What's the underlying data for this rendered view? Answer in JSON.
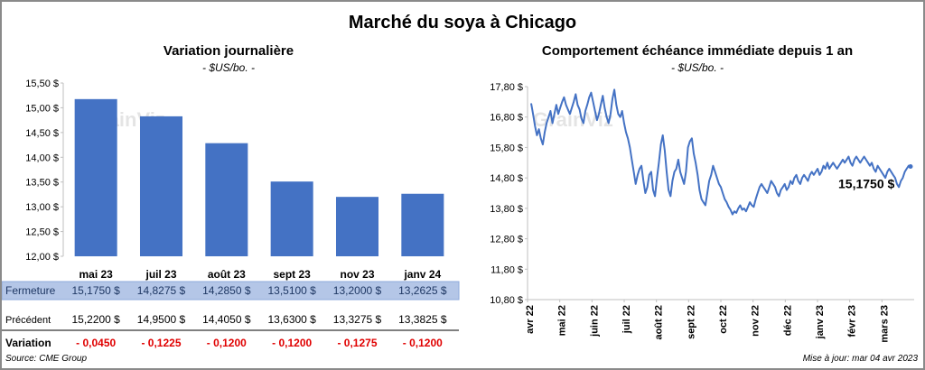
{
  "page_title": "Marché du soya à Chicago",
  "left_chart": {
    "title": "Variation journalière",
    "units": "- $US/bo. -",
    "watermark": "GrainViz"
  },
  "right_chart": {
    "title": "Comportement  échéance immédiate depuis 1 an",
    "units": "- $US/bo. -",
    "watermark": "GrainViz",
    "last_value_label": "15,1750 $"
  },
  "table": {
    "rows": [
      {
        "label": "Fermeture",
        "cells": [
          "15,1750  $",
          "14,8275  $",
          "14,2850  $",
          "13,5100  $",
          "13,2000  $",
          "13,2625  $"
        ]
      },
      {
        "label": "Précédent",
        "cells": [
          "15,2200  $",
          "14,9500  $",
          "14,4050  $",
          "13,6300  $",
          "13,3275  $",
          "13,3825  $"
        ]
      },
      {
        "label": "Variation",
        "cells": [
          "- 0,0450",
          "- 0,1225",
          "- 0,1200",
          "- 0,1200",
          "- 0,1275",
          "- 0,1200"
        ]
      }
    ]
  },
  "footer": {
    "source": "Source: CME Group",
    "updated": "Mise à jour: mar 04 avr 2023"
  },
  "colors": {
    "bar": "#4472c4",
    "line": "#4472c4",
    "negative": "#e00000",
    "highlight_row": "#b4c6e7",
    "text": "#000000"
  },
  "chart_data": [
    {
      "type": "bar",
      "title": "Variation journalière",
      "categories": [
        "mai 23",
        "juil 23",
        "août 23",
        "sept 23",
        "nov 23",
        "janv 24"
      ],
      "values": [
        15.175,
        14.8275,
        14.285,
        13.51,
        13.2,
        13.2625
      ],
      "ylim": [
        12.0,
        15.5
      ],
      "yticks": [
        12.0,
        12.5,
        13.0,
        13.5,
        14.0,
        14.5,
        15.0,
        15.5
      ],
      "ytick_labels": [
        "12,00 $",
        "12,50 $",
        "13,00 $",
        "13,50 $",
        "14,00 $",
        "14,50 $",
        "15,00 $",
        "15,50 $"
      ],
      "xlabel": "",
      "ylabel": ""
    },
    {
      "type": "line",
      "title": "Comportement  échéance immédiate depuis 1 an",
      "x_labels": [
        "avr 22",
        "mai 22",
        "juin 22",
        "juil 22",
        "août 22",
        "sept 22",
        "oct 22",
        "nov 22",
        "déc 22",
        "janv 23",
        "févr 23",
        "mars 23"
      ],
      "ylim": [
        10.8,
        17.8
      ],
      "yticks": [
        10.8,
        11.8,
        12.8,
        13.8,
        14.8,
        15.8,
        16.8,
        17.8
      ],
      "ytick_labels": [
        "10,80 $",
        "11,80 $",
        "12,80 $",
        "13,80 $",
        "14,80 $",
        "15,80 $",
        "16,80 $",
        "17,80 $"
      ],
      "series": [
        {
          "name": "Échéance immédiate",
          "values": [
            17.25,
            16.9,
            16.5,
            16.2,
            16.4,
            16.1,
            15.9,
            16.3,
            16.6,
            16.8,
            17.0,
            16.6,
            16.9,
            17.2,
            16.9,
            17.1,
            17.3,
            17.45,
            17.2,
            17.05,
            16.9,
            17.1,
            17.3,
            17.55,
            17.2,
            17.05,
            16.75,
            16.6,
            17.0,
            17.2,
            17.45,
            17.6,
            17.3,
            17.0,
            16.7,
            16.9,
            17.2,
            17.5,
            17.1,
            16.8,
            16.6,
            16.9,
            17.4,
            17.7,
            17.2,
            16.9,
            16.8,
            17.0,
            16.6,
            16.3,
            16.1,
            15.8,
            15.4,
            15.0,
            14.6,
            14.9,
            15.1,
            15.2,
            14.7,
            14.3,
            14.5,
            14.9,
            15.0,
            14.4,
            14.2,
            14.8,
            15.3,
            15.9,
            16.2,
            15.7,
            15.0,
            14.4,
            14.2,
            14.7,
            15.0,
            15.1,
            15.4,
            15.0,
            14.8,
            14.6,
            15.0,
            15.8,
            16.0,
            16.1,
            15.6,
            15.3,
            14.9,
            14.4,
            14.1,
            14.0,
            13.9,
            14.3,
            14.7,
            14.9,
            15.2,
            15.0,
            14.8,
            14.6,
            14.5,
            14.3,
            14.1,
            14.0,
            13.85,
            13.75,
            13.6,
            13.7,
            13.65,
            13.8,
            13.9,
            13.75,
            13.8,
            13.7,
            13.85,
            14.0,
            13.9,
            13.85,
            14.1,
            14.3,
            14.5,
            14.6,
            14.5,
            14.4,
            14.3,
            14.5,
            14.7,
            14.6,
            14.5,
            14.3,
            14.2,
            14.4,
            14.5,
            14.6,
            14.4,
            14.5,
            14.7,
            14.6,
            14.8,
            14.9,
            14.7,
            14.6,
            14.8,
            14.9,
            14.8,
            14.7,
            14.9,
            15.0,
            14.9,
            15.0,
            15.1,
            14.9,
            15.0,
            15.2,
            15.1,
            15.3,
            15.1,
            15.2,
            15.3,
            15.2,
            15.1,
            15.2,
            15.3,
            15.4,
            15.3,
            15.4,
            15.5,
            15.3,
            15.2,
            15.4,
            15.5,
            15.4,
            15.3,
            15.4,
            15.5,
            15.4,
            15.3,
            15.2,
            15.3,
            15.1,
            15.0,
            15.2,
            15.1,
            15.0,
            14.9,
            14.8,
            15.0,
            15.1,
            15.0,
            14.9,
            14.8,
            14.6,
            14.5,
            14.7,
            14.8,
            15.0,
            15.1,
            15.2,
            15.175
          ]
        }
      ],
      "annotation": "15,1750 $",
      "xlabel": "",
      "ylabel": ""
    }
  ]
}
